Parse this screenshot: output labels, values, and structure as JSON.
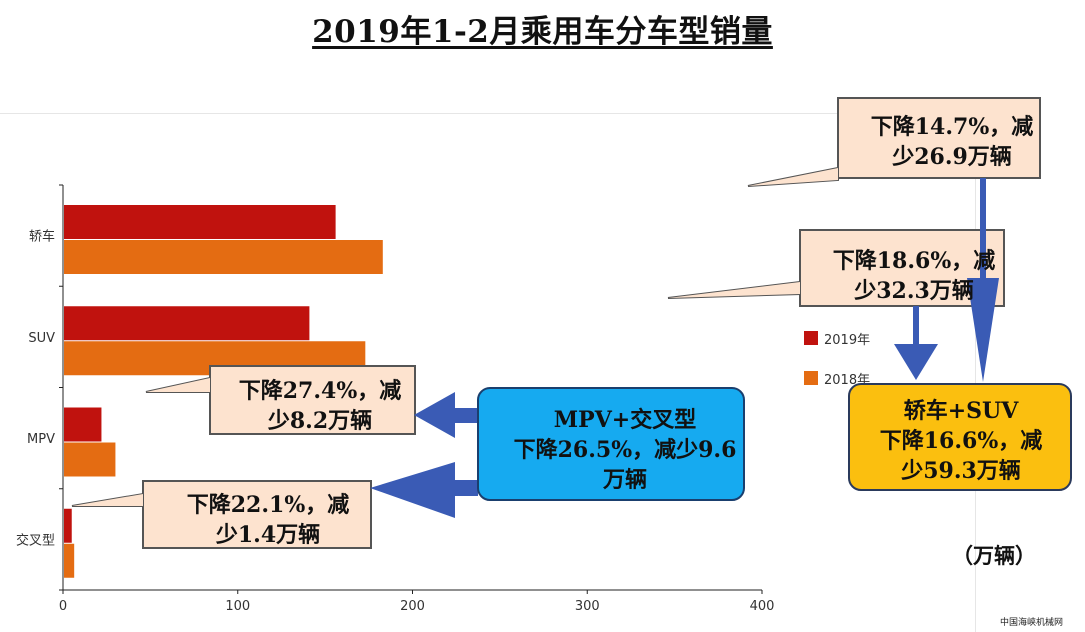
{
  "title": "2019年1-2月乘用车分车型销量",
  "unit": "（万辆）",
  "watermark": "中国海峡机械网",
  "colors": {
    "s2019": "#c0120e",
    "s2018": "#e46c12",
    "callout_fill": "#fde3cf",
    "mpv_box": "#16aaf0",
    "suv_box": "#fbbf0f",
    "arrow": "#3a5bb5"
  },
  "callouts": {
    "mpv_cross": {
      "line1": "MPV+交叉型",
      "line2": "下降26.5%，减少9.6",
      "line3": "万辆"
    },
    "sedan_suv": {
      "line1": "轿车+SUV",
      "line2": "下降16.6%，减",
      "line3": "少59.3万辆"
    },
    "sedan": {
      "line1": "下降14.7%，减",
      "line2": "少26.9万辆"
    },
    "suv": {
      "line1": "下降18.6%，减",
      "line2": "少32.3万辆"
    },
    "mpv": {
      "line1": "下降27.4%，减",
      "line2": "少8.2万辆"
    },
    "cross": {
      "line1": "下降22.1%，减",
      "line2": "少1.4万辆"
    }
  },
  "chart_data": {
    "type": "bar",
    "orientation": "horizontal",
    "categories": [
      "轿车",
      "SUV",
      "MPV",
      "交叉型"
    ],
    "series": [
      {
        "name": "2019年",
        "values": [
          156,
          141,
          22,
          5
        ]
      },
      {
        "name": "2018年",
        "values": [
          183,
          173,
          30,
          6.4
        ]
      }
    ],
    "xlim": [
      0,
      400
    ],
    "xticks": [
      0,
      100,
      200,
      300,
      400
    ],
    "legend_position": "right"
  }
}
